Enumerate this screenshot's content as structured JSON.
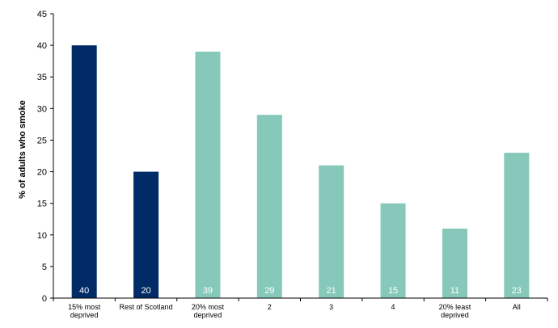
{
  "chart_data": {
    "type": "bar",
    "categories": [
      [
        "15% most",
        "deprived"
      ],
      [
        "Rest of Scotland"
      ],
      [
        "20% most",
        "deprived"
      ],
      [
        "2"
      ],
      [
        "3"
      ],
      [
        "4"
      ],
      [
        "20% least",
        "deprived"
      ],
      [
        "All"
      ]
    ],
    "values": [
      40,
      20,
      39,
      29,
      21,
      15,
      11,
      23
    ],
    "bar_colors": [
      "#002b66",
      "#002b66",
      "#86c9bb",
      "#86c9bb",
      "#86c9bb",
      "#86c9bb",
      "#86c9bb",
      "#86c9bb"
    ],
    "ylabel": "% of adults who smoke",
    "ylim": [
      0,
      45
    ],
    "yticks": [
      0,
      5,
      10,
      15,
      20,
      25,
      30,
      35,
      40,
      45
    ],
    "grid": false,
    "legend": "none"
  }
}
